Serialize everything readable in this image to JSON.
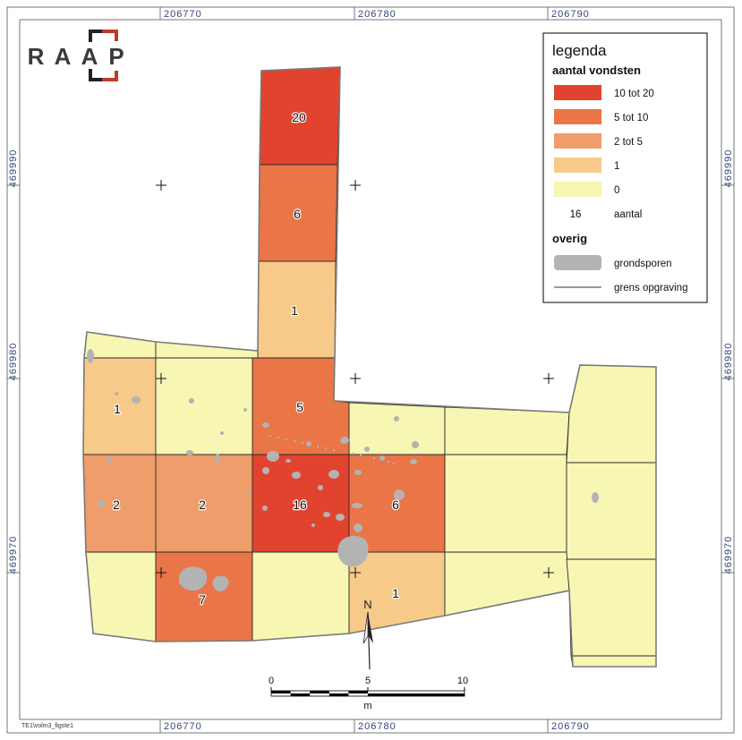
{
  "map": {
    "easting_labels": [
      "206770",
      "206780",
      "206790"
    ],
    "northing_labels": [
      "469990",
      "469980",
      "469970"
    ],
    "file_reference": "TE1\\volm3_figste1"
  },
  "logo": {
    "letters": [
      "R",
      "A",
      "A",
      "P"
    ],
    "text_color": "#3a3a3a",
    "accent_color": "#c0392b"
  },
  "legend": {
    "title": "legenda",
    "counts_heading": "aantal vondsten",
    "classes": [
      {
        "label": "10 tot 20",
        "color": "#e1432f"
      },
      {
        "label": "5 tot 10",
        "color": "#ea7546"
      },
      {
        "label": "2 tot 5",
        "color": "#ee9d6b"
      },
      {
        "label": "1",
        "color": "#f7ca89"
      },
      {
        "label": "0",
        "color": "#f7f6b3"
      }
    ],
    "count_sample": "16",
    "count_label": "aantal",
    "other_heading": "overig",
    "features": {
      "label": "grondsporen",
      "color": "#b3b3b3"
    },
    "boundary": {
      "label": "grens opgraving",
      "color": "#7a7a7a"
    }
  },
  "cells": [
    {
      "count": 20
    },
    {
      "count": 6
    },
    {
      "count": 1
    },
    {
      "count": 5
    },
    {
      "count": 0
    },
    {
      "count": 0
    },
    {
      "count": 1
    },
    {
      "count": 0
    },
    {
      "count": 0
    },
    {
      "count": 0
    },
    {
      "count": 0
    },
    {
      "count": 2
    },
    {
      "count": 2
    },
    {
      "count": 16
    },
    {
      "count": 6
    },
    {
      "count": 0
    },
    {
      "count": 0
    },
    {
      "count": 0
    },
    {
      "count": 7
    },
    {
      "count": 0
    },
    {
      "count": 1
    },
    {
      "count": 0
    },
    {
      "count": 0
    },
    {
      "count": 0
    }
  ],
  "north_arrow": {
    "label": "N"
  },
  "scale_bar": {
    "labels": [
      "0",
      "5",
      "10"
    ],
    "unit": "m"
  }
}
